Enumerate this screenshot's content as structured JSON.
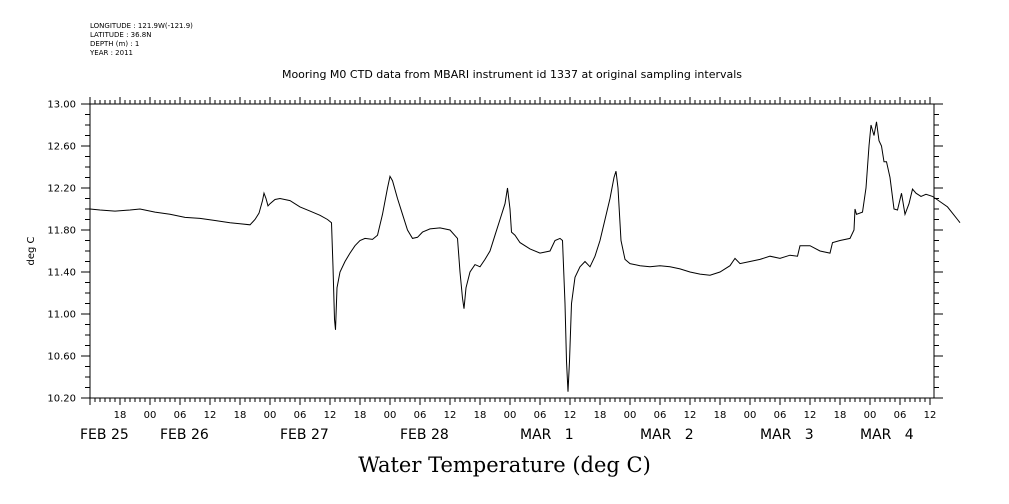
{
  "header": {
    "longitude": "LONGITUDE : 121.9W(-121.9)",
    "latitude": "LATITUDE : 36.8N",
    "depth": "DEPTH (m) : 1",
    "year": "YEAR : 2011"
  },
  "chart_data": {
    "type": "line",
    "title": "Mooring M0 CTD data from MBARI instrument id 1337 at original sampling intervals",
    "footer_title": "Water Temperature (deg C)",
    "ylabel": "deg C",
    "xlabel": "",
    "ylim": [
      10.2,
      13.0
    ],
    "yticks": [
      "13.00",
      "12.60",
      "12.20",
      "11.80",
      "11.40",
      "11.00",
      "10.60",
      "10.20"
    ],
    "xlim_hours": [
      12,
      180
    ],
    "x_unit": "hours after 00:00 FEB 25 2011",
    "hour_tick_labels": [
      {
        "h": 18,
        "label": "18"
      },
      {
        "h": 24,
        "label": "00"
      },
      {
        "h": 30,
        "label": "06"
      },
      {
        "h": 36,
        "label": "12"
      },
      {
        "h": 42,
        "label": "18"
      },
      {
        "h": 48,
        "label": "00"
      },
      {
        "h": 54,
        "label": "06"
      },
      {
        "h": 60,
        "label": "12"
      },
      {
        "h": 66,
        "label": "18"
      },
      {
        "h": 72,
        "label": "00"
      },
      {
        "h": 78,
        "label": "06"
      },
      {
        "h": 84,
        "label": "12"
      },
      {
        "h": 90,
        "label": "18"
      },
      {
        "h": 96,
        "label": "00"
      },
      {
        "h": 102,
        "label": "06"
      },
      {
        "h": 108,
        "label": "12"
      },
      {
        "h": 114,
        "label": "18"
      },
      {
        "h": 120,
        "label": "00"
      },
      {
        "h": 126,
        "label": "06"
      },
      {
        "h": 132,
        "label": "12"
      },
      {
        "h": 138,
        "label": "18"
      },
      {
        "h": 144,
        "label": "00"
      },
      {
        "h": 150,
        "label": "06"
      },
      {
        "h": 156,
        "label": "12"
      },
      {
        "h": 162,
        "label": "18"
      },
      {
        "h": 168,
        "label": "00"
      },
      {
        "h": 174,
        "label": "06"
      },
      {
        "h": 180,
        "label": "12"
      }
    ],
    "date_labels": [
      {
        "h": 12,
        "label": "FEB 25"
      },
      {
        "h": 28,
        "label": "FEB 26"
      },
      {
        "h": 52,
        "label": "FEB 27"
      },
      {
        "h": 76,
        "label": "FEB 28"
      },
      {
        "h": 100,
        "label": "MAR   1"
      },
      {
        "h": 124,
        "label": "MAR   2"
      },
      {
        "h": 148,
        "label": "MAR   3"
      },
      {
        "h": 168,
        "label": "MAR   4"
      }
    ],
    "series": [
      {
        "values": [
          [
            12.0,
            12.0
          ],
          [
            14.0,
            11.99
          ],
          [
            17.0,
            11.98
          ],
          [
            20.0,
            11.99
          ],
          [
            22.0,
            12.0
          ],
          [
            25.0,
            11.97
          ],
          [
            28.0,
            11.95
          ],
          [
            31.0,
            11.92
          ],
          [
            34.0,
            11.91
          ],
          [
            37.0,
            11.89
          ],
          [
            40.0,
            11.87
          ],
          [
            42.0,
            11.86
          ],
          [
            44.0,
            11.85
          ],
          [
            45.0,
            11.9
          ],
          [
            45.8,
            11.96
          ],
          [
            46.5,
            12.08
          ],
          [
            46.8,
            12.15
          ],
          [
            47.2,
            12.1
          ],
          [
            47.6,
            12.03
          ],
          [
            48.0,
            12.05
          ],
          [
            49.0,
            12.09
          ],
          [
            50.0,
            12.1
          ],
          [
            52.0,
            12.08
          ],
          [
            54.0,
            12.02
          ],
          [
            56.0,
            11.98
          ],
          [
            58.0,
            11.94
          ],
          [
            59.5,
            11.9
          ],
          [
            60.3,
            11.87
          ],
          [
            60.6,
            11.45
          ],
          [
            60.9,
            10.95
          ],
          [
            61.1,
            10.85
          ],
          [
            61.4,
            11.25
          ],
          [
            62.0,
            11.4
          ],
          [
            63.0,
            11.5
          ],
          [
            64.0,
            11.58
          ],
          [
            65.0,
            11.65
          ],
          [
            66.0,
            11.7
          ],
          [
            67.0,
            11.72
          ],
          [
            68.5,
            11.71
          ],
          [
            69.5,
            11.75
          ],
          [
            70.5,
            11.95
          ],
          [
            71.5,
            12.2
          ],
          [
            72.0,
            12.31
          ],
          [
            72.5,
            12.27
          ],
          [
            73.5,
            12.1
          ],
          [
            74.5,
            11.95
          ],
          [
            75.5,
            11.8
          ],
          [
            76.5,
            11.72
          ],
          [
            77.5,
            11.73
          ],
          [
            78.5,
            11.78
          ],
          [
            80.0,
            11.81
          ],
          [
            82.0,
            11.82
          ],
          [
            84.0,
            11.8
          ],
          [
            85.5,
            11.72
          ],
          [
            86.0,
            11.4
          ],
          [
            86.5,
            11.15
          ],
          [
            86.8,
            11.05
          ],
          [
            87.2,
            11.25
          ],
          [
            88.0,
            11.4
          ],
          [
            89.0,
            11.47
          ],
          [
            90.0,
            11.45
          ],
          [
            91.0,
            11.52
          ],
          [
            92.0,
            11.6
          ],
          [
            93.0,
            11.75
          ],
          [
            94.0,
            11.9
          ],
          [
            95.0,
            12.05
          ],
          [
            95.5,
            12.2
          ],
          [
            96.0,
            12.0
          ],
          [
            96.3,
            11.78
          ],
          [
            97.0,
            11.75
          ],
          [
            98.0,
            11.68
          ],
          [
            100.0,
            11.62
          ],
          [
            102.0,
            11.58
          ],
          [
            104.0,
            11.6
          ],
          [
            105.0,
            11.7
          ],
          [
            106.0,
            11.72
          ],
          [
            106.5,
            11.7
          ],
          [
            107.0,
            11.1
          ],
          [
            107.3,
            10.55
          ],
          [
            107.6,
            10.26
          ],
          [
            107.9,
            10.55
          ],
          [
            108.3,
            11.1
          ],
          [
            109.0,
            11.35
          ],
          [
            110.0,
            11.45
          ],
          [
            111.0,
            11.5
          ],
          [
            112.0,
            11.45
          ],
          [
            113.0,
            11.55
          ],
          [
            114.0,
            11.7
          ],
          [
            115.0,
            11.9
          ],
          [
            116.0,
            12.1
          ],
          [
            116.8,
            12.3
          ],
          [
            117.2,
            12.36
          ],
          [
            117.6,
            12.2
          ],
          [
            118.2,
            11.7
          ],
          [
            119.0,
            11.52
          ],
          [
            120.0,
            11.48
          ],
          [
            122.0,
            11.46
          ],
          [
            124.0,
            11.45
          ],
          [
            126.0,
            11.46
          ],
          [
            128.0,
            11.45
          ],
          [
            130.0,
            11.43
          ],
          [
            132.0,
            11.4
          ],
          [
            134.0,
            11.38
          ],
          [
            136.0,
            11.37
          ],
          [
            138.0,
            11.4
          ],
          [
            140.0,
            11.46
          ],
          [
            141.0,
            11.53
          ],
          [
            142.0,
            11.48
          ],
          [
            144.0,
            11.5
          ],
          [
            146.0,
            11.52
          ],
          [
            148.0,
            11.55
          ],
          [
            150.0,
            11.53
          ],
          [
            152.0,
            11.56
          ],
          [
            153.5,
            11.55
          ],
          [
            154.0,
            11.65
          ],
          [
            156.0,
            11.65
          ],
          [
            158.0,
            11.6
          ],
          [
            160.0,
            11.58
          ],
          [
            160.5,
            11.68
          ],
          [
            162.0,
            11.7
          ],
          [
            164.0,
            11.72
          ],
          [
            164.8,
            11.8
          ],
          [
            165.0,
            12.0
          ],
          [
            165.3,
            11.95
          ],
          [
            166.5,
            11.97
          ],
          [
            167.2,
            12.2
          ],
          [
            167.8,
            12.6
          ],
          [
            168.2,
            12.8
          ],
          [
            168.8,
            12.7
          ],
          [
            169.3,
            12.83
          ],
          [
            169.8,
            12.65
          ],
          [
            170.3,
            12.6
          ],
          [
            170.8,
            12.45
          ],
          [
            171.3,
            12.45
          ],
          [
            172.0,
            12.3
          ],
          [
            172.8,
            12.0
          ],
          [
            173.5,
            11.99
          ],
          [
            174.3,
            12.15
          ],
          [
            175.0,
            11.95
          ],
          [
            175.8,
            12.05
          ],
          [
            176.5,
            12.19
          ],
          [
            177.2,
            12.15
          ],
          [
            178.2,
            12.12
          ],
          [
            179.2,
            12.14
          ],
          [
            180.5,
            12.12
          ],
          [
            182.0,
            12.07
          ],
          [
            183.5,
            12.02
          ],
          [
            184.5,
            11.96
          ],
          [
            185.5,
            11.9
          ],
          [
            186.0,
            11.87
          ]
        ]
      }
    ]
  }
}
